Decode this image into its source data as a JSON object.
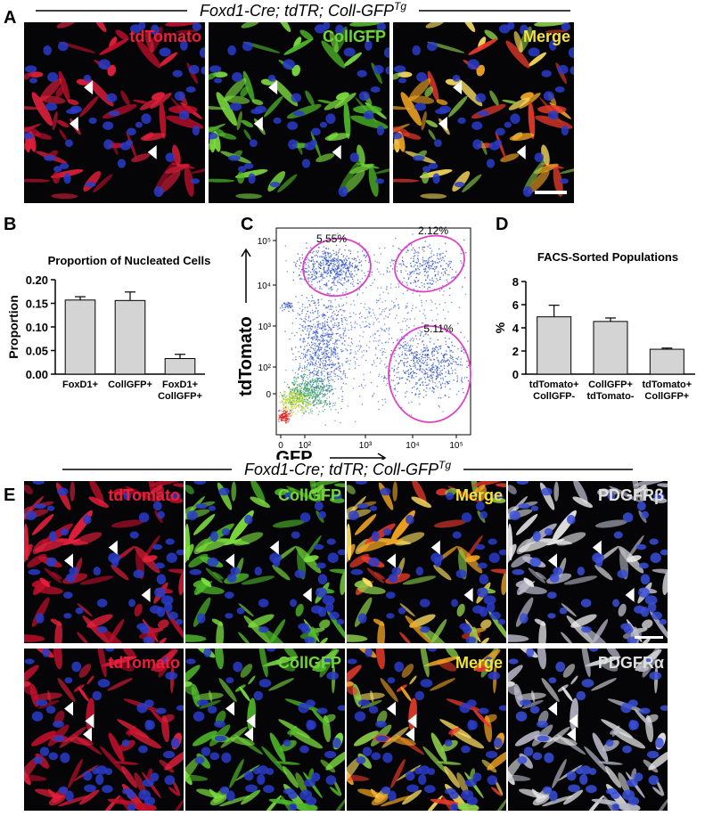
{
  "panel_a": {
    "label": "A",
    "title": "Foxd1-Cre; tdTR; Coll-GFP",
    "title_sup": "Tg",
    "channels": [
      "tdTomato",
      "CollGFP",
      "Merge"
    ]
  },
  "chart_data": [
    {
      "type": "bar",
      "label": "B",
      "title": "Proportion of Nucleated Cells",
      "ylabel": "Proportion",
      "categories": [
        "FoxD1+",
        "CollGFP+",
        "FoxD1+ CollGFP+"
      ],
      "values": [
        0.157,
        0.156,
        0.033
      ],
      "errors": [
        0.007,
        0.018,
        0.009
      ],
      "color": "#d4d4d4",
      "ylim": [
        0,
        0.2
      ],
      "yticks": [
        {
          "value": 0,
          "label": "0.00"
        },
        {
          "value": 0.05,
          "label": "0.05"
        },
        {
          "value": 0.1,
          "label": "0.10"
        },
        {
          "value": 0.15,
          "label": "0.15"
        },
        {
          "value": 0.2,
          "label": "0.20"
        }
      ]
    },
    {
      "type": "bar",
      "label": "D",
      "title": "FACS-Sorted Populations",
      "ylabel": "%",
      "categories": [
        "tdTomato+ CollGFP-",
        "CollGFP+ tdTomato-",
        "tdTomato+ CollGFP+"
      ],
      "values": [
        4.95,
        4.55,
        2.15
      ],
      "errors": [
        1.0,
        0.3,
        0.1
      ],
      "color": "#d4d4d4",
      "ylim": [
        0,
        8
      ],
      "yticks": [
        0,
        2,
        4,
        6,
        8
      ]
    }
  ],
  "panel_c": {
    "label": "C",
    "xlabel": "GFP",
    "ylabel": "tdTomato",
    "xticks": [
      "0",
      "10²",
      "10³",
      "10⁴",
      "10⁵"
    ],
    "yticks": [
      "10⁵",
      "10⁴",
      "10³",
      "10²",
      "0"
    ],
    "gates": [
      "5.55%",
      "2.12%",
      "5.11%"
    ]
  },
  "panel_e": {
    "label": "E",
    "title": "Foxd1-Cre; tdTR; Coll-GFP",
    "title_sup": "Tg",
    "rows": [
      [
        "tdTomato",
        "CollGFP",
        "Merge",
        "PDGFRβ"
      ],
      [
        "tdTomato",
        "CollGFP",
        "Merge",
        "PDGFRα"
      ]
    ]
  }
}
